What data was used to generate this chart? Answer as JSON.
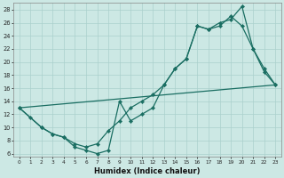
{
  "xlabel": "Humidex (Indice chaleur)",
  "bg_color": "#cce8e4",
  "line_color": "#1a6e62",
  "grid_color": "#aad0cc",
  "xlim": [
    -0.5,
    23.5
  ],
  "ylim": [
    5.5,
    29
  ],
  "yticks": [
    6,
    8,
    10,
    12,
    14,
    16,
    18,
    20,
    22,
    24,
    26,
    28
  ],
  "xticks": [
    0,
    1,
    2,
    3,
    4,
    5,
    6,
    7,
    8,
    9,
    10,
    11,
    12,
    13,
    14,
    15,
    16,
    17,
    18,
    19,
    20,
    21,
    22,
    23
  ],
  "line1_x": [
    0,
    1,
    2,
    3,
    4,
    5,
    6,
    7,
    8,
    9,
    10,
    11,
    12,
    13,
    14,
    15,
    16,
    17,
    18,
    19,
    20,
    21,
    22,
    23
  ],
  "line1_y": [
    13,
    11.5,
    10,
    9,
    8.5,
    7,
    6.5,
    6,
    6.5,
    14,
    11,
    12,
    13,
    16.5,
    19,
    20.5,
    25.5,
    25,
    26,
    26.5,
    28.5,
    22,
    19,
    16.5
  ],
  "line2_x": [
    0,
    2,
    3,
    4,
    5,
    6,
    7,
    8,
    9,
    10,
    11,
    12,
    13,
    14,
    15,
    16,
    17,
    18,
    19,
    20,
    21,
    22,
    23
  ],
  "line2_y": [
    13,
    10,
    9,
    8.5,
    7.5,
    7,
    7.5,
    9.5,
    11,
    13,
    14,
    15,
    16.5,
    19,
    20.5,
    25.5,
    25,
    25.5,
    27,
    25.5,
    22,
    18.5,
    16.5
  ],
  "line3_x": [
    0,
    23
  ],
  "line3_y": [
    13,
    16.5
  ]
}
